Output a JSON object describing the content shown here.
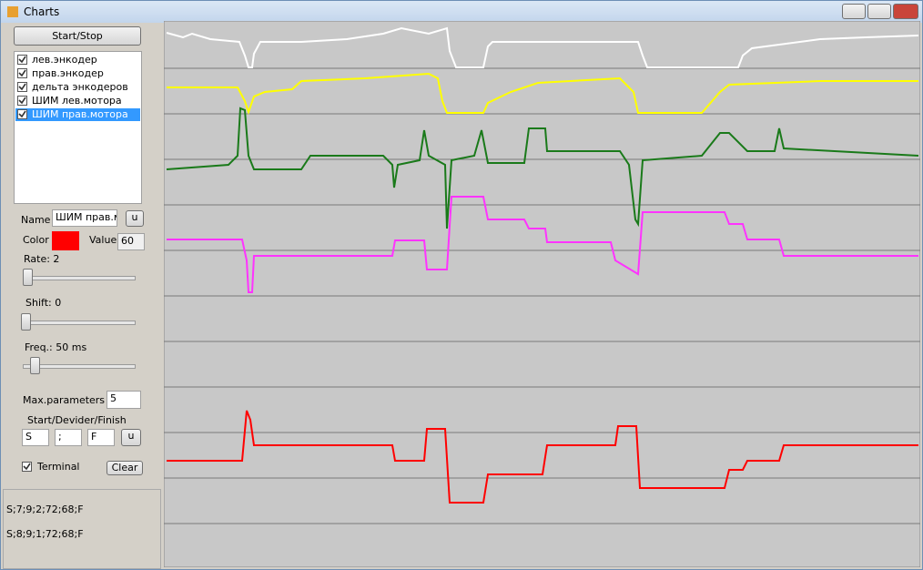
{
  "window": {
    "title": "Charts"
  },
  "controls": {
    "start_stop": "Start/Stop",
    "list": [
      "лев.энкодер",
      "прав.энкодер",
      "дельта энкодеров",
      "ШИМ лев.мотора",
      "ШИМ прав.мотора"
    ],
    "name_label": "Name",
    "name_value": "ШИМ прав.мотора",
    "name_button": "u",
    "color_label": "Color",
    "value_label": "Value",
    "value": "60",
    "rate": "Rate: 2",
    "shift": "Shift: 0",
    "freq": "Freq.: 50 ms",
    "max_parameters_label": "Max.parameters",
    "max_parameters": "5",
    "sdf_label": "Start/Devider/Finish",
    "start": "S",
    "divider": ";",
    "finish": "F",
    "sdf_button": "u",
    "terminal": "Terminal",
    "clear": "Clear"
  },
  "terminal": {
    "lines": [
      "S;7;9;2;72;68;F",
      "S;8;9;1;72;68;F"
    ]
  }
}
